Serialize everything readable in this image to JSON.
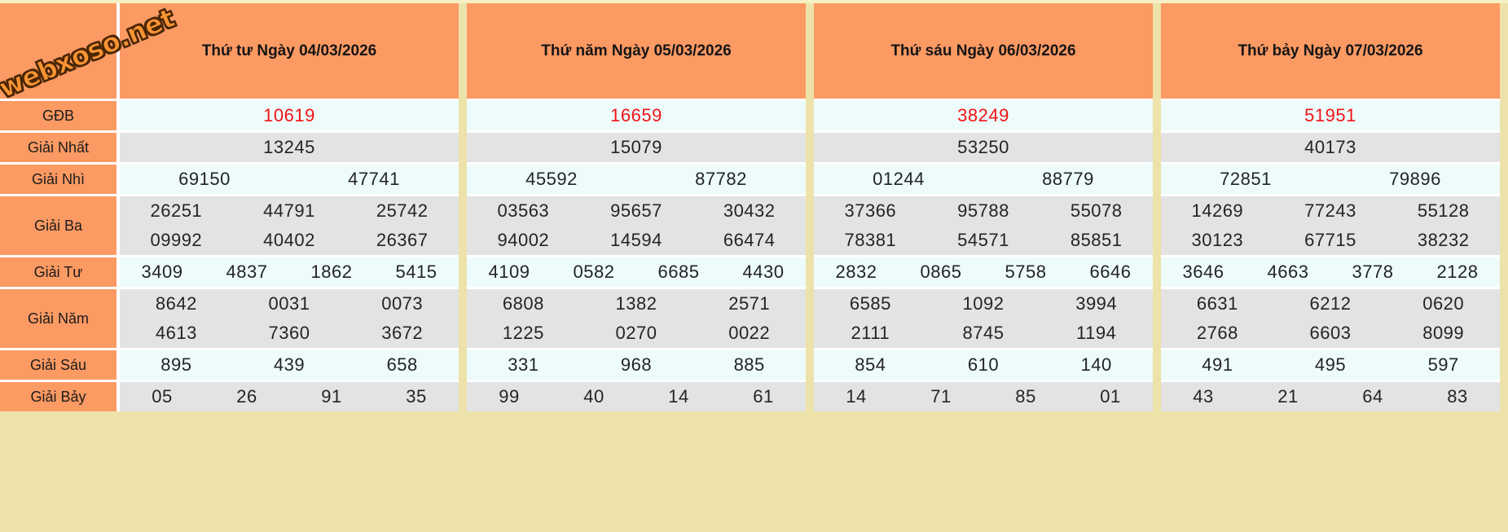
{
  "site": {
    "logo_text": "webxoso.net"
  },
  "colors": {
    "header_orange": "#FC9A63",
    "row_light": "#EDFBFB",
    "row_gray": "#E3E3E3",
    "page_background": "#ECE2AA",
    "top_strip": "#F6F0C4",
    "separator_white": "#FFFFFF",
    "special_prize_red": "#F21414",
    "number_text": "#242424"
  },
  "table": {
    "row_labels": [
      "GĐB",
      "Giải Nhất",
      "Giải Nhì",
      "Giải Ba",
      "Giải Tư",
      "Giải Năm",
      "Giải Sáu",
      "Giải Bảy"
    ],
    "columns": [
      {
        "header": "Thứ tư Ngày 04/03/2026",
        "prizes": [
          {
            "name": "gdb",
            "special": true,
            "rows": [
              [
                "10619"
              ]
            ]
          },
          {
            "name": "nhat",
            "special": false,
            "rows": [
              [
                "13245"
              ]
            ]
          },
          {
            "name": "nhi",
            "special": false,
            "rows": [
              [
                "69150",
                "47741"
              ]
            ]
          },
          {
            "name": "ba",
            "special": false,
            "rows": [
              [
                "26251",
                "44791",
                "25742"
              ],
              [
                "09992",
                "40402",
                "26367"
              ]
            ]
          },
          {
            "name": "tu",
            "special": false,
            "rows": [
              [
                "3409",
                "4837",
                "1862",
                "5415"
              ]
            ]
          },
          {
            "name": "nam",
            "special": false,
            "rows": [
              [
                "8642",
                "0031",
                "0073"
              ],
              [
                "4613",
                "7360",
                "3672"
              ]
            ]
          },
          {
            "name": "sau",
            "special": false,
            "rows": [
              [
                "895",
                "439",
                "658"
              ]
            ]
          },
          {
            "name": "bay",
            "special": false,
            "rows": [
              [
                "05",
                "26",
                "91",
                "35"
              ]
            ]
          }
        ]
      },
      {
        "header": "Thứ năm Ngày 05/03/2026",
        "prizes": [
          {
            "name": "gdb",
            "special": true,
            "rows": [
              [
                "16659"
              ]
            ]
          },
          {
            "name": "nhat",
            "special": false,
            "rows": [
              [
                "15079"
              ]
            ]
          },
          {
            "name": "nhi",
            "special": false,
            "rows": [
              [
                "45592",
                "87782"
              ]
            ]
          },
          {
            "name": "ba",
            "special": false,
            "rows": [
              [
                "03563",
                "95657",
                "30432"
              ],
              [
                "94002",
                "14594",
                "66474"
              ]
            ]
          },
          {
            "name": "tu",
            "special": false,
            "rows": [
              [
                "4109",
                "0582",
                "6685",
                "4430"
              ]
            ]
          },
          {
            "name": "nam",
            "special": false,
            "rows": [
              [
                "6808",
                "1382",
                "2571"
              ],
              [
                "1225",
                "0270",
                "0022"
              ]
            ]
          },
          {
            "name": "sau",
            "special": false,
            "rows": [
              [
                "331",
                "968",
                "885"
              ]
            ]
          },
          {
            "name": "bay",
            "special": false,
            "rows": [
              [
                "99",
                "40",
                "14",
                "61"
              ]
            ]
          }
        ]
      },
      {
        "header": "Thứ sáu Ngày 06/03/2026",
        "prizes": [
          {
            "name": "gdb",
            "special": true,
            "rows": [
              [
                "38249"
              ]
            ]
          },
          {
            "name": "nhat",
            "special": false,
            "rows": [
              [
                "53250"
              ]
            ]
          },
          {
            "name": "nhi",
            "special": false,
            "rows": [
              [
                "01244",
                "88779"
              ]
            ]
          },
          {
            "name": "ba",
            "special": false,
            "rows": [
              [
                "37366",
                "95788",
                "55078"
              ],
              [
                "78381",
                "54571",
                "85851"
              ]
            ]
          },
          {
            "name": "tu",
            "special": false,
            "rows": [
              [
                "2832",
                "0865",
                "5758",
                "6646"
              ]
            ]
          },
          {
            "name": "nam",
            "special": false,
            "rows": [
              [
                "6585",
                "1092",
                "3994"
              ],
              [
                "2111",
                "8745",
                "1194"
              ]
            ]
          },
          {
            "name": "sau",
            "special": false,
            "rows": [
              [
                "854",
                "610",
                "140"
              ]
            ]
          },
          {
            "name": "bay",
            "special": false,
            "rows": [
              [
                "14",
                "71",
                "85",
                "01"
              ]
            ]
          }
        ]
      },
      {
        "header": "Thứ bảy Ngày 07/03/2026",
        "prizes": [
          {
            "name": "gdb",
            "special": true,
            "rows": [
              [
                "51951"
              ]
            ]
          },
          {
            "name": "nhat",
            "special": false,
            "rows": [
              [
                "40173"
              ]
            ]
          },
          {
            "name": "nhi",
            "special": false,
            "rows": [
              [
                "72851",
                "79896"
              ]
            ]
          },
          {
            "name": "ba",
            "special": false,
            "rows": [
              [
                "14269",
                "77243",
                "55128"
              ],
              [
                "30123",
                "67715",
                "38232"
              ]
            ]
          },
          {
            "name": "tu",
            "special": false,
            "rows": [
              [
                "3646",
                "4663",
                "3778",
                "2128"
              ]
            ]
          },
          {
            "name": "nam",
            "special": false,
            "rows": [
              [
                "6631",
                "6212",
                "0620"
              ],
              [
                "2768",
                "6603",
                "8099"
              ]
            ]
          },
          {
            "name": "sau",
            "special": false,
            "rows": [
              [
                "491",
                "495",
                "597"
              ]
            ]
          },
          {
            "name": "bay",
            "special": false,
            "rows": [
              [
                "43",
                "21",
                "64",
                "83"
              ]
            ]
          }
        ]
      }
    ]
  }
}
